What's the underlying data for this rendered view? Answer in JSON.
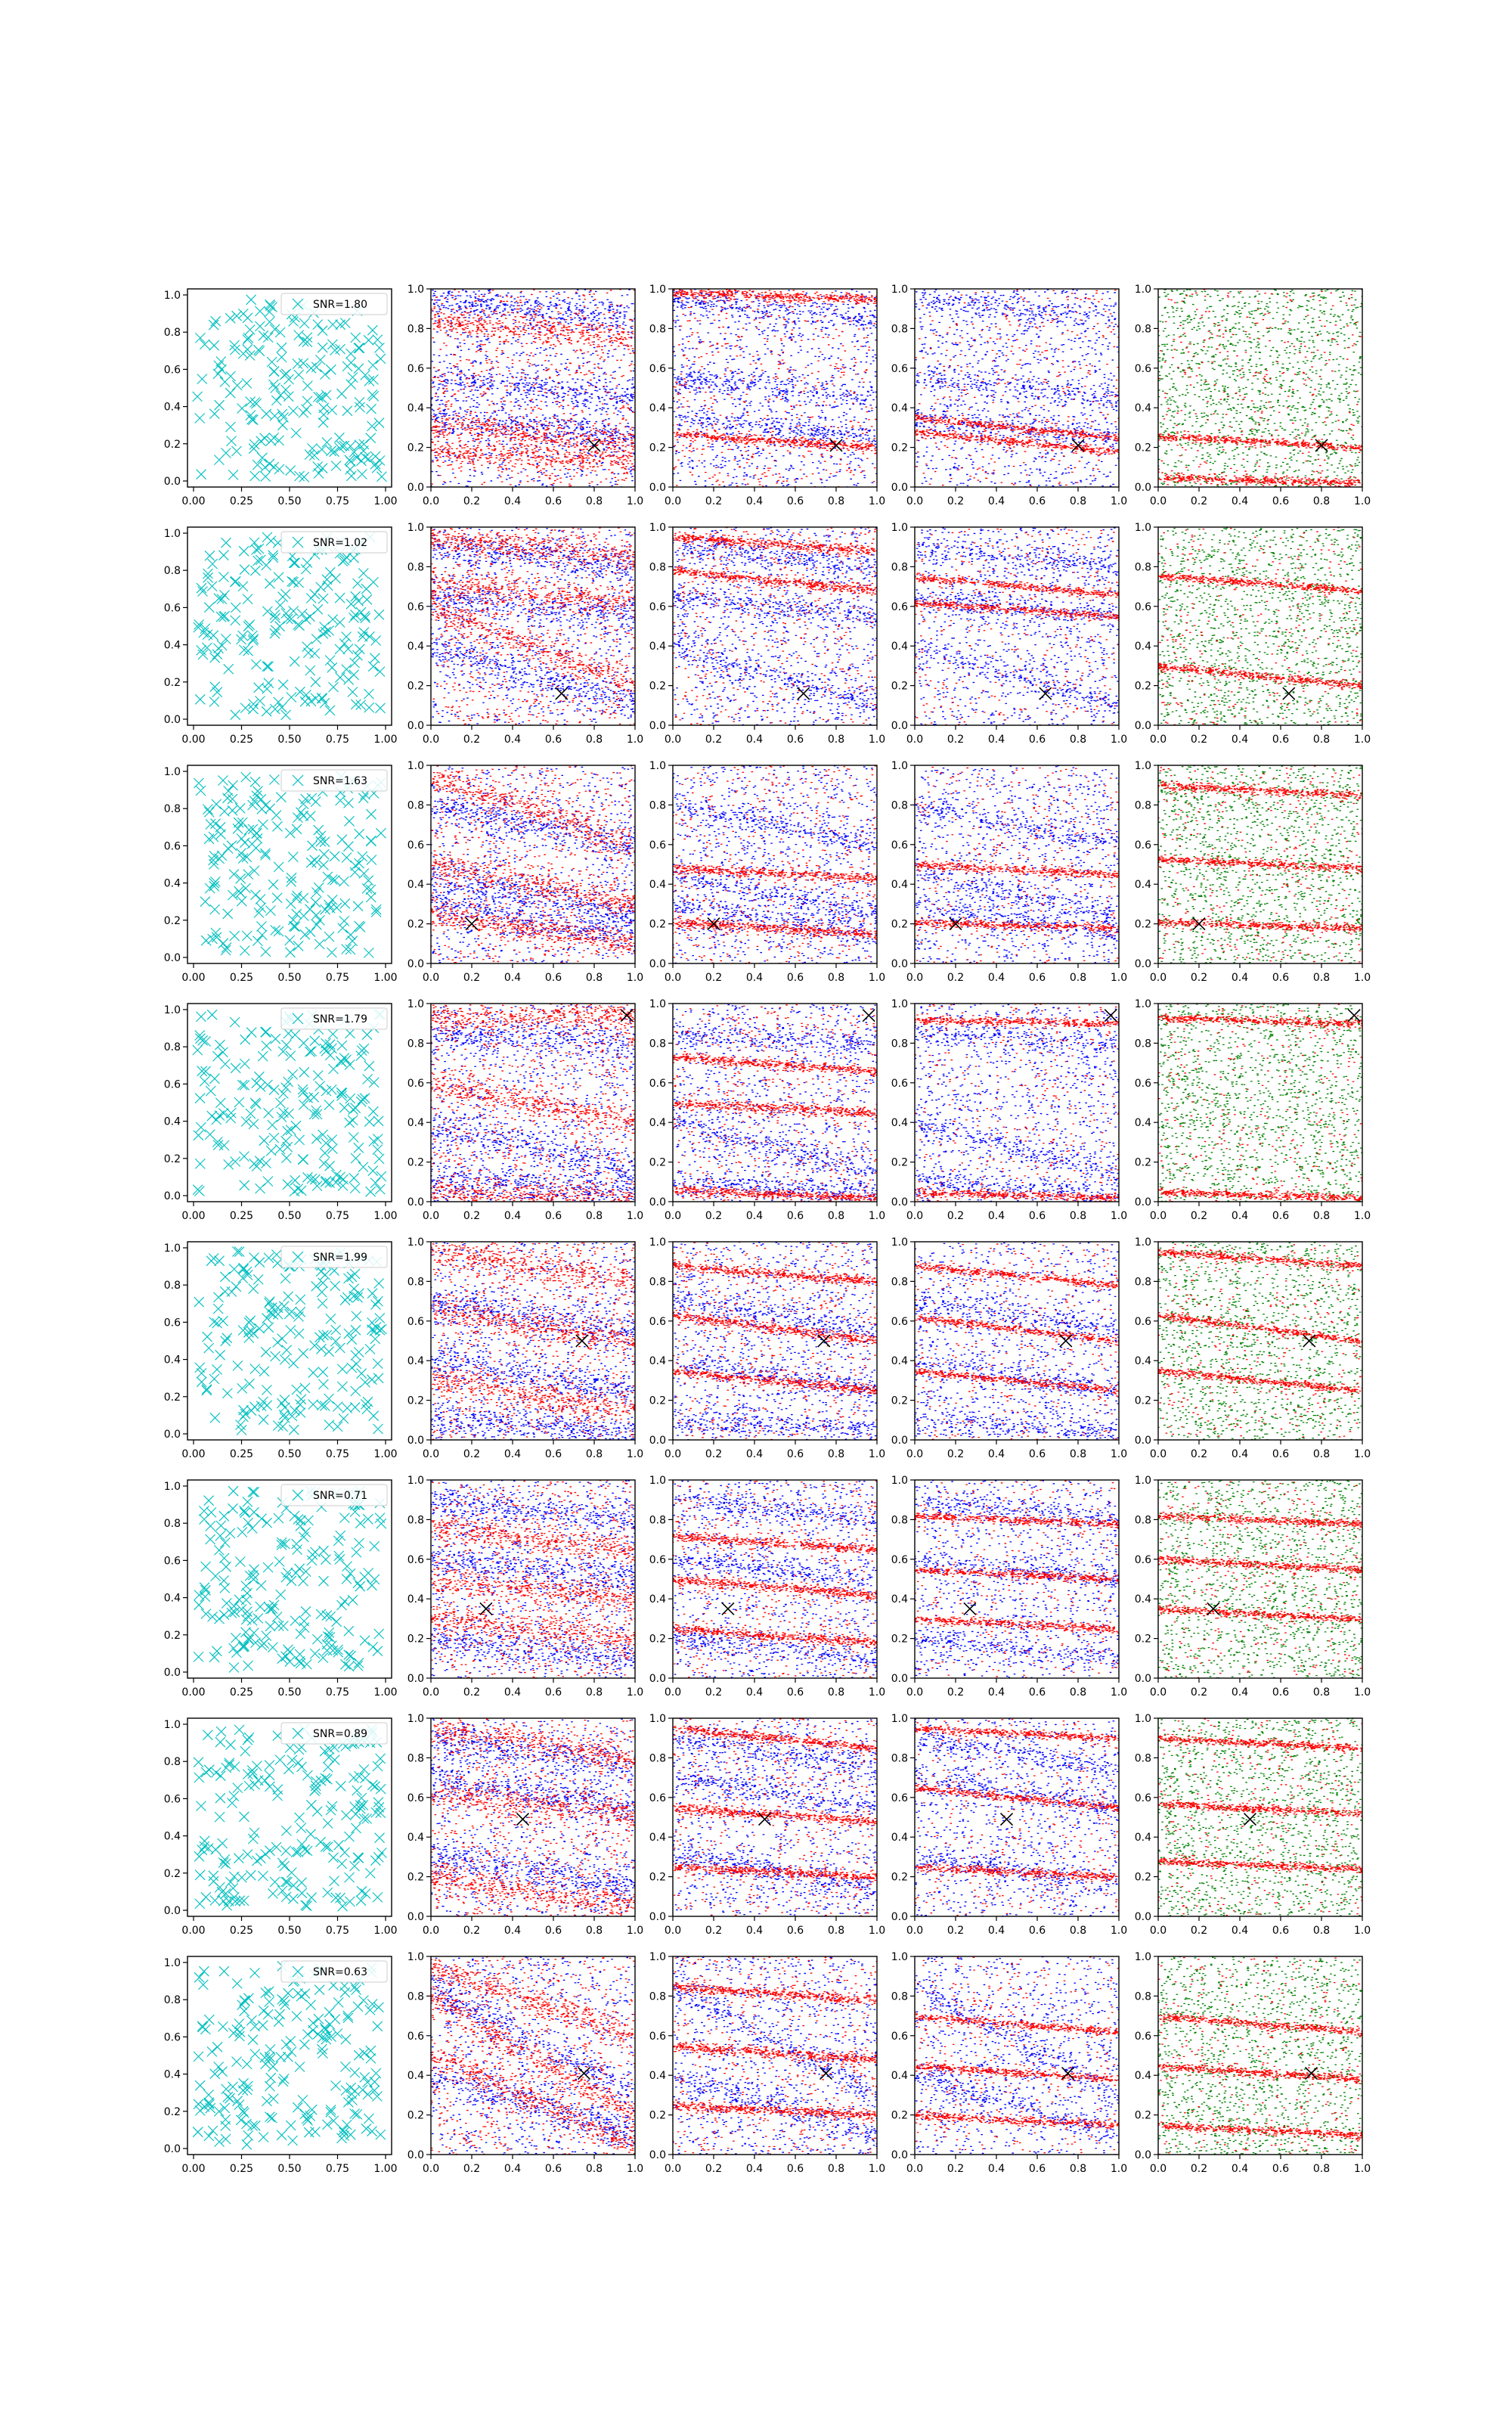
{
  "figure": {
    "colors": {
      "cyan_marker": "#00BFBF",
      "red": "#FF0000",
      "blue": "#0000FF",
      "green": "#008000",
      "truth_marker": "#000000",
      "axes": "#000000",
      "background": "#FFFFFF"
    }
  },
  "chart_data": {
    "type": "scatter",
    "grid": false,
    "layout_rows": 8,
    "layout_cols": 5,
    "first_column": {
      "marker": "x",
      "color": "cyan",
      "xlim": [
        0,
        1
      ],
      "ylim": [
        0,
        1
      ],
      "xticks": [
        "0.00",
        "0.25",
        "0.50",
        "0.75",
        "1.00"
      ],
      "yticks": [
        "0.0",
        "0.2",
        "0.4",
        "0.6",
        "0.8",
        "1.0"
      ],
      "legend_location": "top-right",
      "points_per_panel": 200
    },
    "other_columns": {
      "xlim": [
        0,
        1
      ],
      "ylim": [
        0,
        1
      ],
      "xticks": [
        "0.0",
        "0.2",
        "0.4",
        "0.6",
        "0.8",
        "1.0"
      ],
      "yticks": [
        "0.0",
        "0.2",
        "0.4",
        "0.6",
        "0.8",
        "1.0"
      ],
      "column_colors": [
        [
          "red",
          "blue"
        ],
        [
          "red",
          "blue"
        ],
        [
          "red",
          "blue"
        ],
        [
          "red",
          "green"
        ]
      ],
      "truth_marker": "x",
      "truth_color": "black"
    },
    "rows": [
      {
        "legend": "SNR=1.80",
        "truth": [
          0.8,
          0.21
        ],
        "red_bands": [
          [
            0.32,
            0.22
          ],
          [
            0.85,
            0.75
          ],
          [
            0.18,
            0.13
          ]
        ],
        "blue_bands": [
          [
            0.35,
            0.25
          ],
          [
            0.95,
            0.85
          ],
          [
            0.55,
            0.45
          ]
        ],
        "col2_bands": [
          [
            0.27,
            0.2
          ],
          [
            0.98,
            0.95
          ]
        ],
        "col3_bands": [
          [
            0.28,
            0.18
          ],
          [
            0.35,
            0.25
          ]
        ],
        "col4_red": [
          [
            0.26,
            0.2
          ],
          [
            0.05,
            0.02
          ]
        ]
      },
      {
        "legend": "SNR=1.02",
        "truth": [
          0.64,
          0.16
        ],
        "red_bands": [
          [
            0.72,
            0.62
          ],
          [
            0.6,
            0.2
          ],
          [
            0.95,
            0.85
          ]
        ],
        "blue_bands": [
          [
            0.9,
            0.8
          ],
          [
            0.4,
            0.1
          ],
          [
            0.65,
            0.55
          ]
        ],
        "col2_bands": [
          [
            0.95,
            0.88
          ],
          [
            0.78,
            0.68
          ]
        ],
        "col3_bands": [
          [
            0.75,
            0.66
          ],
          [
            0.62,
            0.55
          ]
        ],
        "col4_red": [
          [
            0.76,
            0.68
          ],
          [
            0.3,
            0.2
          ]
        ]
      },
      {
        "legend": "SNR=1.63",
        "truth": [
          0.2,
          0.2
        ],
        "red_bands": [
          [
            0.25,
            0.1
          ],
          [
            0.95,
            0.6
          ],
          [
            0.5,
            0.3
          ]
        ],
        "blue_bands": [
          [
            0.8,
            0.6
          ],
          [
            0.45,
            0.25
          ],
          [
            0.3,
            0.15
          ]
        ],
        "col2_bands": [
          [
            0.21,
            0.15
          ],
          [
            0.48,
            0.43
          ]
        ],
        "col3_bands": [
          [
            0.21,
            0.18
          ],
          [
            0.5,
            0.45
          ]
        ],
        "col4_red": [
          [
            0.21,
            0.18
          ],
          [
            0.53,
            0.48
          ],
          [
            0.9,
            0.85
          ]
        ]
      },
      {
        "legend": "SNR=1.79",
        "truth": [
          0.96,
          0.94
        ],
        "red_bands": [
          [
            0.92,
            0.95
          ],
          [
            0.6,
            0.4
          ],
          [
            0.05,
            0.02
          ]
        ],
        "blue_bands": [
          [
            0.85,
            0.8
          ],
          [
            0.4,
            0.15
          ],
          [
            0.1,
            0.05
          ]
        ],
        "col2_bands": [
          [
            0.5,
            0.45
          ],
          [
            0.73,
            0.66
          ],
          [
            0.06,
            0.02
          ]
        ],
        "col3_bands": [
          [
            0.92,
            0.9
          ],
          [
            0.05,
            0.02
          ]
        ],
        "col4_red": [
          [
            0.93,
            0.9
          ],
          [
            0.05,
            0.02
          ]
        ]
      },
      {
        "legend": "SNR=1.99",
        "truth": [
          0.74,
          0.5
        ],
        "red_bands": [
          [
            0.66,
            0.5
          ],
          [
            0.3,
            0.15
          ],
          [
            0.95,
            0.8
          ]
        ],
        "blue_bands": [
          [
            0.7,
            0.55
          ],
          [
            0.4,
            0.25
          ],
          [
            0.1,
            0.05
          ]
        ],
        "col2_bands": [
          [
            0.63,
            0.5
          ],
          [
            0.35,
            0.25
          ],
          [
            0.88,
            0.8
          ]
        ],
        "col3_bands": [
          [
            0.62,
            0.5
          ],
          [
            0.88,
            0.78
          ],
          [
            0.35,
            0.25
          ]
        ],
        "col4_red": [
          [
            0.63,
            0.5
          ],
          [
            0.95,
            0.88
          ],
          [
            0.35,
            0.25
          ]
        ]
      },
      {
        "legend": "SNR=0.71",
        "truth": [
          0.27,
          0.35
        ],
        "red_bands": [
          [
            0.5,
            0.4
          ],
          [
            0.75,
            0.65
          ],
          [
            0.3,
            0.2
          ]
        ],
        "blue_bands": [
          [
            0.6,
            0.5
          ],
          [
            0.9,
            0.8
          ],
          [
            0.2,
            0.1
          ]
        ],
        "col2_bands": [
          [
            0.5,
            0.42
          ],
          [
            0.72,
            0.65
          ],
          [
            0.25,
            0.18
          ]
        ],
        "col3_bands": [
          [
            0.82,
            0.78
          ],
          [
            0.55,
            0.5
          ],
          [
            0.3,
            0.25
          ]
        ],
        "col4_red": [
          [
            0.82,
            0.78
          ],
          [
            0.6,
            0.55
          ],
          [
            0.35,
            0.3
          ]
        ]
      },
      {
        "legend": "SNR=0.89",
        "truth": [
          0.45,
          0.49
        ],
        "red_bands": [
          [
            0.95,
            0.8
          ],
          [
            0.62,
            0.52
          ],
          [
            0.2,
            0.05
          ]
        ],
        "blue_bands": [
          [
            0.9,
            0.75
          ],
          [
            0.7,
            0.55
          ],
          [
            0.3,
            0.15
          ]
        ],
        "col2_bands": [
          [
            0.95,
            0.85
          ],
          [
            0.55,
            0.48
          ],
          [
            0.25,
            0.2
          ]
        ],
        "col3_bands": [
          [
            0.95,
            0.9
          ],
          [
            0.65,
            0.55
          ],
          [
            0.25,
            0.2
          ]
        ],
        "col4_red": [
          [
            0.9,
            0.85
          ],
          [
            0.57,
            0.52
          ],
          [
            0.28,
            0.24
          ]
        ]
      },
      {
        "legend": "SNR=0.63",
        "truth": [
          0.75,
          0.41
        ],
        "red_bands": [
          [
            0.8,
            0.2
          ],
          [
            0.5,
            0.05
          ],
          [
            0.95,
            0.6
          ]
        ],
        "blue_bands": [
          [
            0.85,
            0.3
          ],
          [
            0.4,
            0.1
          ]
        ],
        "col2_bands": [
          [
            0.25,
            0.2
          ],
          [
            0.55,
            0.48
          ],
          [
            0.85,
            0.78
          ]
        ],
        "col3_bands": [
          [
            0.7,
            0.62
          ],
          [
            0.45,
            0.38
          ],
          [
            0.2,
            0.15
          ]
        ],
        "col4_red": [
          [
            0.7,
            0.62
          ],
          [
            0.45,
            0.38
          ],
          [
            0.15,
            0.1
          ]
        ]
      }
    ]
  }
}
